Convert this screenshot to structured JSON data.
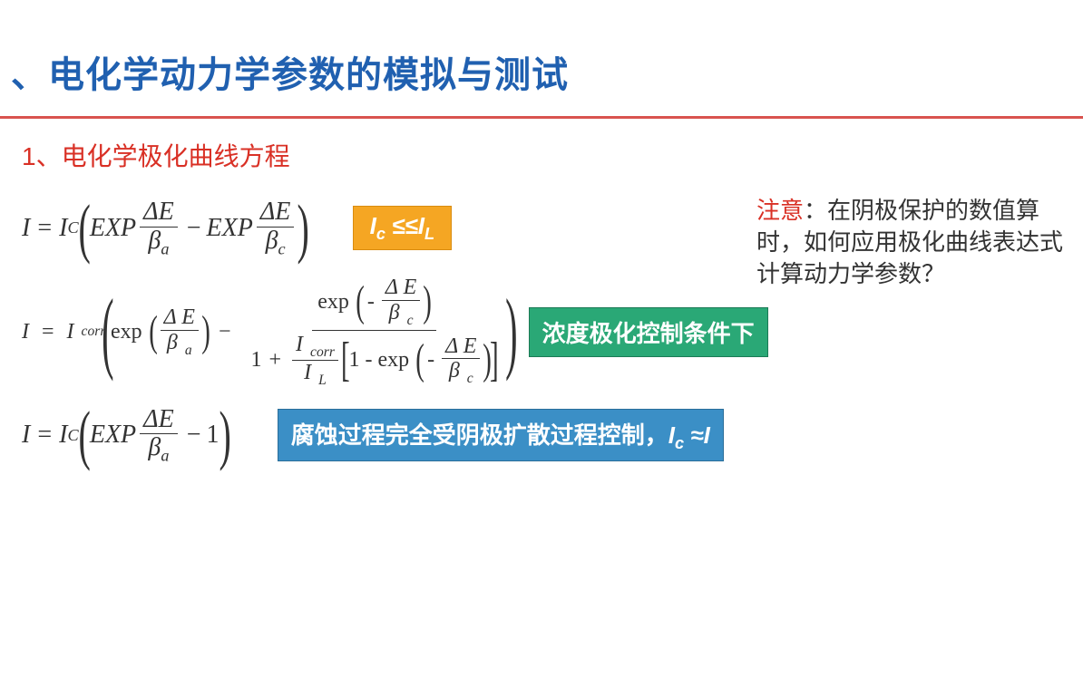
{
  "title": "、电化学动力学参数的模拟与测试",
  "subtitle": "1、电化学极化曲线方程",
  "note": {
    "attn": "注意",
    "text": "：在阴极保护的数值算时，如何应用极化曲线表达式计算动力学参数？"
  },
  "badges": {
    "orange_html": "I<sub>c</sub> ≤≤I<sub>L</sub>",
    "green": "浓度极化控制条件下",
    "blue_prefix": "腐蚀过程完全受阴极扩散过程控制，",
    "blue_expr_html": "I<sub>c</sub> ≈I"
  },
  "symbols": {
    "I": "I",
    "Ic": "I<sub>C</sub>",
    "Icorr": "I<span class=\"sp\"></span><sub>corr</sub>",
    "IL": "I<span class=\"sp\"></span><sub>L</sub>",
    "dE": "Δ<span class=\"it\">E</span>",
    "ba": "β<sub>a</sub>",
    "bc": "β<sub>c</sub>",
    "ba2": "β<span class=\"sp\"></span><sub>a</sub>",
    "bc2": "β<span class=\"sp\"></span><sub>c</sub>",
    "EXP": "EXP",
    "exp": "exp"
  },
  "colors": {
    "title": "#2060b0",
    "divider": "#d9534f",
    "subtitle": "#d93025",
    "attn": "#d93025",
    "badge_orange_bg": "#f5a623",
    "badge_green_bg": "#2aa876",
    "badge_blue_bg": "#3b8fc6",
    "text": "#333333"
  }
}
